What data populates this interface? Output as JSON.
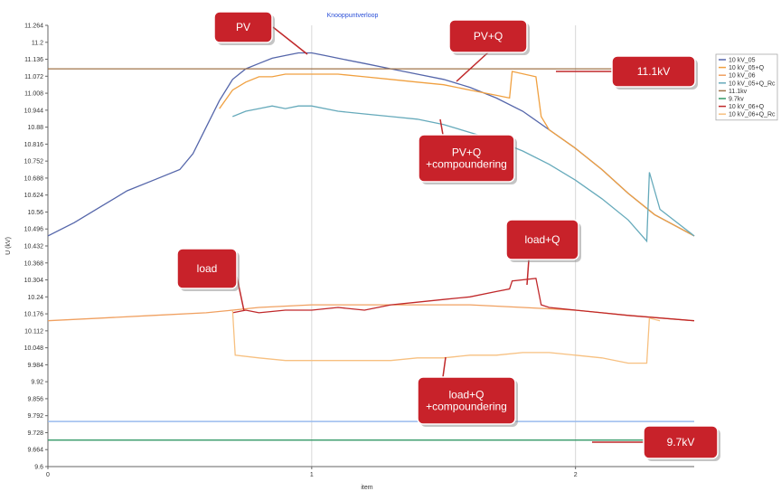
{
  "chart_data": {
    "type": "line",
    "title": "Knooppuntverloop",
    "xlabel": "item",
    "ylabel": "U (kV)",
    "xlim": [
      0,
      2.45
    ],
    "ylim": [
      9.6,
      11.264
    ],
    "x_ticks": [
      0,
      1,
      2
    ],
    "y_ticks": [
      9.6,
      9.664,
      9.728,
      9.792,
      9.856,
      9.92,
      9.984,
      10.048,
      10.112,
      10.176,
      10.24,
      10.304,
      10.368,
      10.432,
      10.496,
      10.56,
      10.624,
      10.688,
      10.752,
      10.816,
      10.88,
      10.944,
      11.008,
      11.072,
      11.136,
      11.2,
      11.264
    ],
    "grid": "vertical",
    "legend_position": "right",
    "series": [
      {
        "name": "10 kV_05",
        "color": "#5566aa",
        "x": [
          0,
          0.1,
          0.2,
          0.3,
          0.4,
          0.5,
          0.55,
          0.6,
          0.65,
          0.7,
          0.75,
          0.8,
          0.85,
          0.9,
          0.95,
          1.0,
          1.05,
          1.1,
          1.2,
          1.3,
          1.4,
          1.5,
          1.6,
          1.7,
          1.8,
          1.9,
          2.0,
          2.1,
          2.2,
          2.3,
          2.45
        ],
        "y": [
          10.47,
          10.52,
          10.58,
          10.64,
          10.68,
          10.72,
          10.78,
          10.88,
          10.98,
          11.06,
          11.1,
          11.12,
          11.14,
          11.15,
          11.16,
          11.16,
          11.15,
          11.14,
          11.12,
          11.1,
          11.08,
          11.06,
          11.03,
          10.99,
          10.94,
          10.87,
          10.8,
          10.72,
          10.63,
          10.55,
          10.47
        ]
      },
      {
        "name": "10 kV_05+Q",
        "color": "#f0a040",
        "x": [
          0.65,
          0.7,
          0.75,
          0.8,
          0.85,
          0.9,
          0.95,
          1.0,
          1.05,
          1.1,
          1.2,
          1.3,
          1.4,
          1.5,
          1.6,
          1.7,
          1.75,
          1.76,
          1.85,
          1.87,
          1.9,
          2.0,
          2.1,
          2.2,
          2.3,
          2.45
        ],
        "y": [
          10.95,
          11.02,
          11.05,
          11.07,
          11.07,
          11.08,
          11.08,
          11.08,
          11.08,
          11.08,
          11.07,
          11.06,
          11.05,
          11.04,
          11.02,
          11.0,
          10.99,
          11.09,
          11.07,
          10.92,
          10.87,
          10.8,
          10.72,
          10.63,
          10.55,
          10.47
        ]
      },
      {
        "name": "10 kV_06",
        "color": "#f0a060",
        "x": [
          0,
          0.2,
          0.4,
          0.6,
          0.7,
          0.8,
          1.0,
          1.2,
          1.4,
          1.6,
          1.8,
          2.0,
          2.2,
          2.45
        ],
        "y": [
          10.15,
          10.16,
          10.17,
          10.18,
          10.19,
          10.2,
          10.21,
          10.21,
          10.21,
          10.21,
          10.2,
          10.19,
          10.17,
          10.15
        ]
      },
      {
        "name": "10 kV_05+Q_Rc",
        "color": "#66aabb",
        "x": [
          0.7,
          0.75,
          0.8,
          0.85,
          0.9,
          0.95,
          1.0,
          1.1,
          1.2,
          1.3,
          1.4,
          1.5,
          1.6,
          1.7,
          1.8,
          1.9,
          2.0,
          2.1,
          2.2,
          2.27,
          2.28,
          2.32,
          2.45
        ],
        "y": [
          10.92,
          10.94,
          10.95,
          10.96,
          10.95,
          10.96,
          10.96,
          10.94,
          10.93,
          10.92,
          10.91,
          10.89,
          10.86,
          10.83,
          10.79,
          10.74,
          10.68,
          10.61,
          10.53,
          10.45,
          10.71,
          10.57,
          10.47
        ]
      },
      {
        "name": "11.1kv",
        "color": "#a0744a",
        "x": [
          0,
          2.45
        ],
        "y": [
          11.1,
          11.1
        ]
      },
      {
        "name": "9.7kv",
        "color": "#339966",
        "x": [
          0,
          2.45
        ],
        "y": [
          9.7,
          9.7
        ]
      },
      {
        "name": "10 kV_06+Q",
        "color": "#c0282a",
        "x": [
          0.7,
          0.75,
          0.8,
          0.9,
          1.0,
          1.1,
          1.2,
          1.3,
          1.4,
          1.5,
          1.6,
          1.7,
          1.75,
          1.76,
          1.85,
          1.87,
          1.9,
          2.0,
          2.1,
          2.2,
          2.45
        ],
        "y": [
          10.18,
          10.19,
          10.18,
          10.19,
          10.19,
          10.2,
          10.19,
          10.21,
          10.22,
          10.23,
          10.24,
          10.26,
          10.27,
          10.3,
          10.31,
          10.21,
          10.2,
          10.19,
          10.18,
          10.17,
          10.15
        ]
      },
      {
        "name": "10 kV_06+Q_Rc",
        "color": "#f7c080",
        "x": [
          0.7,
          0.71,
          0.8,
          0.9,
          1.0,
          1.1,
          1.2,
          1.3,
          1.4,
          1.5,
          1.6,
          1.7,
          1.8,
          1.9,
          2.0,
          2.1,
          2.2,
          2.27,
          2.28,
          2.32
        ],
        "y": [
          10.19,
          10.02,
          10.01,
          10.0,
          10.0,
          10.0,
          10.0,
          10.0,
          10.01,
          10.01,
          10.02,
          10.02,
          10.03,
          10.03,
          10.02,
          10.01,
          9.99,
          9.99,
          10.16,
          10.15
        ]
      }
    ],
    "extra_lines": [
      {
        "color": "#99bbee",
        "y": 9.77
      }
    ],
    "annotations": [
      {
        "text": "PV"
      },
      {
        "text": "PV+Q"
      },
      {
        "text": "11.1kV"
      },
      {
        "text": "PV+Q\n+compoundering"
      },
      {
        "text": "load"
      },
      {
        "text": "load+Q"
      },
      {
        "text": "load+Q\n+compoundering"
      },
      {
        "text": "9.7kV"
      }
    ]
  }
}
